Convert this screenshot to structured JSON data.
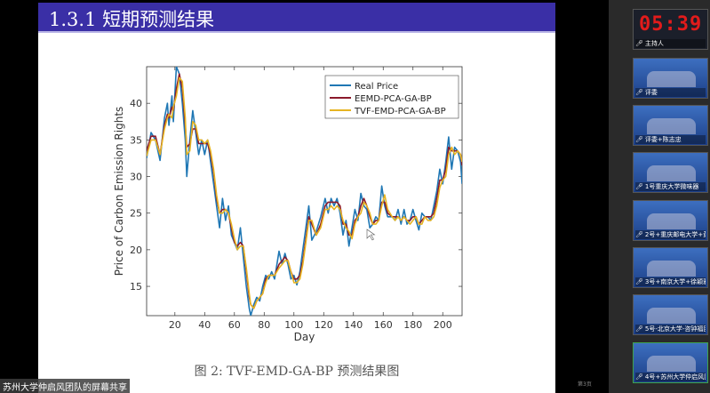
{
  "slide": {
    "title": "1.3.1 短期预测结果",
    "caption": "图 2: TVF-EMD-GA-BP 预测结果图",
    "page_number": "第3页"
  },
  "share_label": "苏州大学仲启风团队的屏幕共享",
  "participants": [
    {
      "name": "主持人",
      "timer": "05:39"
    },
    {
      "name": "评委"
    },
    {
      "name": "评委+陈志忠"
    },
    {
      "name": "1号重庆大学微味器"
    },
    {
      "name": "2号+重庆邮电大学+黄可..."
    },
    {
      "name": "3号+南京大学+徐颖雅"
    },
    {
      "name": "5号-北京大学-咨钟福团队"
    },
    {
      "name": "4号+苏州大学仲启风团队",
      "active": true
    }
  ],
  "chart_data": {
    "type": "line",
    "title": "",
    "xlabel": "Day",
    "ylabel": "Price of Carbon Emission Rights",
    "xlim": [
      1,
      213
    ],
    "ylim": [
      11,
      45
    ],
    "xticks": [
      20,
      40,
      60,
      80,
      100,
      120,
      140,
      160,
      180,
      200
    ],
    "yticks": [
      15,
      20,
      25,
      30,
      35,
      40
    ],
    "legend_position": "top-right",
    "grid": false,
    "x": [
      1,
      4,
      7,
      10,
      13,
      15,
      16,
      18,
      19,
      21,
      23,
      25,
      27,
      28,
      30,
      32,
      34,
      36,
      38,
      40,
      42,
      44,
      46,
      48,
      50,
      52,
      54,
      56,
      58,
      60,
      62,
      64,
      66,
      68,
      70,
      71,
      73,
      75,
      77,
      79,
      81,
      83,
      85,
      87,
      90,
      92,
      94,
      96,
      98,
      100,
      102,
      104,
      106,
      108,
      110,
      112,
      115,
      118,
      121,
      123,
      125,
      127,
      129,
      131,
      133,
      135,
      137,
      139,
      141,
      143,
      145,
      147,
      149,
      151,
      153,
      155,
      157,
      159,
      161,
      163,
      166,
      168,
      170,
      172,
      174,
      176,
      178,
      180,
      182,
      184,
      186,
      188,
      190,
      192,
      194,
      196,
      198,
      200,
      202,
      204,
      206,
      208,
      210,
      212,
      213
    ],
    "series": [
      {
        "name": "Real Price",
        "color": "#1f77b4",
        "values": [
          32.5,
          36,
          35,
          32.2,
          38,
          40,
          37,
          41,
          37.5,
          45,
          44,
          40,
          35,
          30,
          35,
          39,
          36,
          33,
          35,
          33,
          35,
          32,
          29,
          26,
          23,
          27,
          24,
          26,
          22,
          21,
          20,
          23,
          19,
          15,
          12,
          11,
          12.5,
          13.5,
          13,
          15,
          16.5,
          16,
          17,
          16,
          19.8,
          18,
          19.5,
          18,
          16,
          16.5,
          15.2,
          17,
          20,
          23,
          26,
          21.3,
          22.5,
          24.5,
          27,
          25,
          27,
          26,
          27,
          25,
          22,
          24,
          20.5,
          23,
          25.5,
          24,
          27.7,
          26,
          25.5,
          23,
          23.5,
          24.5,
          24,
          28.7,
          26,
          24.5,
          24.5,
          24,
          25.5,
          23.5,
          25.5,
          23.5,
          24,
          25.5,
          24,
          22.7,
          25,
          24.5,
          24.5,
          24,
          26,
          28,
          31,
          29,
          32,
          35.4,
          31,
          34,
          33.5,
          32,
          29
        ]
      },
      {
        "name": "EEMD-PCA-GA-BP",
        "color": "#8b1a2b",
        "values": [
          33.5,
          35.5,
          35.5,
          33,
          37,
          38.5,
          38,
          39.5,
          39,
          42,
          44,
          42,
          37,
          34,
          34.5,
          36.5,
          36.5,
          34.5,
          34.5,
          34.5,
          34.5,
          33,
          30.5,
          27,
          25,
          25.5,
          25.5,
          25,
          23,
          21,
          20.5,
          21,
          20.5,
          17,
          13.5,
          12.5,
          12,
          13,
          13.5,
          14,
          16,
          16.5,
          16.5,
          16.5,
          18,
          18.5,
          19,
          18.5,
          17,
          16,
          16,
          16.5,
          18.5,
          21.5,
          24.5,
          23.5,
          22,
          23.5,
          26,
          26.5,
          26.5,
          26.5,
          26.5,
          26,
          23.5,
          23.5,
          22,
          22,
          24,
          24.5,
          26,
          27,
          26,
          24.5,
          23.5,
          24,
          24,
          26.5,
          26.5,
          25,
          24.5,
          24.5,
          24.5,
          24,
          24.5,
          24,
          24,
          24.5,
          24.5,
          23.5,
          24,
          24.5,
          24.5,
          24.5,
          25,
          27,
          29.5,
          29.5,
          31,
          34,
          33.5,
          33.5,
          33.5,
          33,
          31.5
        ]
      },
      {
        "name": "TVF-EMD-PCA-GA-BP",
        "color": "#e6b422",
        "values": [
          32.8,
          35,
          35,
          33,
          36.5,
          38,
          38.5,
          38,
          39.5,
          41,
          43.5,
          43,
          38,
          33,
          33.5,
          37.5,
          37,
          35,
          35,
          34.5,
          35,
          33.5,
          31,
          27.5,
          25,
          25,
          25.5,
          25,
          23.5,
          21.5,
          20,
          20.5,
          20.5,
          17.5,
          14,
          12.5,
          12,
          13,
          13.5,
          14,
          15.5,
          16.5,
          16.5,
          16.5,
          17.5,
          18,
          18.5,
          18.5,
          17,
          15.5,
          15.5,
          16,
          18,
          21,
          24,
          24,
          22,
          23,
          25.5,
          25.5,
          26,
          25.5,
          26,
          25.5,
          24,
          23,
          22.5,
          21.5,
          23.5,
          24.5,
          25,
          26.5,
          26,
          25,
          23.5,
          23.5,
          24,
          26,
          27.5,
          25.5,
          24.5,
          24,
          24.5,
          24,
          24.5,
          24,
          23.5,
          24,
          24.5,
          23.5,
          23.5,
          24.5,
          24,
          24,
          24.5,
          26,
          28.5,
          29.5,
          30,
          33,
          34,
          33,
          33.5,
          33,
          32
        ]
      }
    ]
  }
}
